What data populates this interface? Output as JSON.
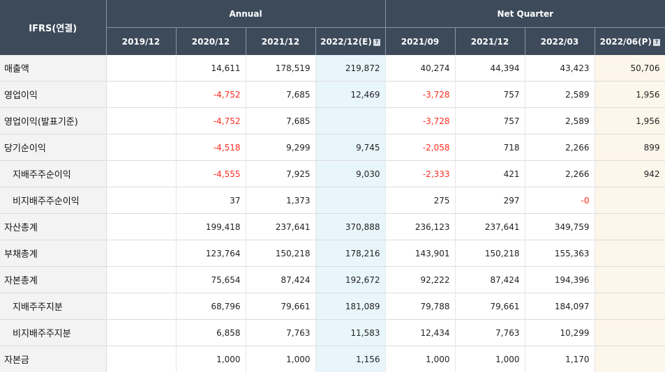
{
  "header": {
    "corner": "IFRS(연결)",
    "groups": {
      "annual": "Annual",
      "quarter": "Net Quarter"
    },
    "annual_cols": [
      "2019/12",
      "2020/12",
      "2021/12",
      "2022/12(E)"
    ],
    "quarter_cols": [
      "2021/09",
      "2021/12",
      "2022/03",
      "2022/06(P)"
    ]
  },
  "rows": [
    {
      "label": "매출액",
      "cells": [
        "",
        "14,611",
        "178,519",
        "219,872",
        "40,274",
        "44,394",
        "43,423",
        "50,706"
      ]
    },
    {
      "label": "영업이익",
      "cells": [
        "",
        "-4,752",
        "7,685",
        "12,469",
        "-3,728",
        "757",
        "2,589",
        "1,956"
      ]
    },
    {
      "label": "영업이익(발표기준)",
      "cells": [
        "",
        "-4,752",
        "7,685",
        "",
        "-3,728",
        "757",
        "2,589",
        "1,956"
      ]
    },
    {
      "label": "당기순이익",
      "cells": [
        "",
        "-4,518",
        "9,299",
        "9,745",
        "-2,058",
        "718",
        "2,266",
        "899"
      ]
    },
    {
      "label": "지배주주순이익",
      "cells": [
        "",
        "-4,555",
        "7,925",
        "9,030",
        "-2,333",
        "421",
        "2,266",
        "942"
      ]
    },
    {
      "label": "비지배주주순이익",
      "cells": [
        "",
        "37",
        "1,373",
        "",
        "275",
        "297",
        "-0",
        ""
      ]
    },
    {
      "label": "자산총계",
      "cells": [
        "",
        "199,418",
        "237,641",
        "370,888",
        "236,123",
        "237,641",
        "349,759",
        ""
      ]
    },
    {
      "label": "부채총계",
      "cells": [
        "",
        "123,764",
        "150,218",
        "178,216",
        "143,901",
        "150,218",
        "155,363",
        ""
      ]
    },
    {
      "label": "자본총계",
      "cells": [
        "",
        "75,654",
        "87,424",
        "192,672",
        "92,222",
        "87,424",
        "194,396",
        ""
      ]
    },
    {
      "label": "지배주주지분",
      "cells": [
        "",
        "68,796",
        "79,661",
        "181,089",
        "79,788",
        "79,661",
        "184,097",
        ""
      ]
    },
    {
      "label": "비지배주주지분",
      "cells": [
        "",
        "6,858",
        "7,763",
        "11,583",
        "12,434",
        "7,763",
        "10,299",
        ""
      ]
    },
    {
      "label": "자본금",
      "cells": [
        "",
        "1,000",
        "1,000",
        "1,156",
        "1,000",
        "1,000",
        "1,170",
        ""
      ]
    }
  ],
  "colors": {
    "header_bg": "#3c4a5a",
    "negative": "#ff2b1c",
    "estimate_bg": "#e8f5fb",
    "provisional_bg": "#fdf6ea"
  },
  "icons": {
    "help": "question-mark-icon"
  }
}
